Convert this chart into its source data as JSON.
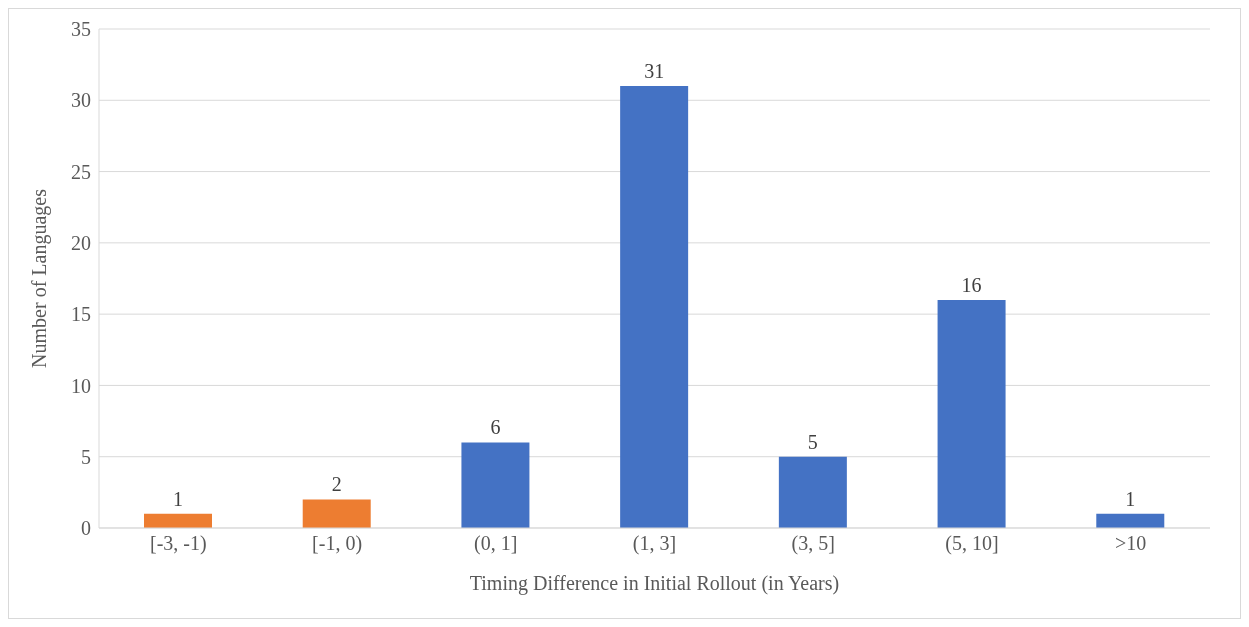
{
  "chart_data": {
    "type": "bar",
    "xlabel": "Timing Difference in Initial Rollout (in Years)",
    "ylabel": "Number of Languages",
    "categories": [
      "[-3, -1)",
      "[-1, 0)",
      "(0, 1]",
      "(1, 3]",
      "(3, 5]",
      "(5, 10]",
      ">10"
    ],
    "values": [
      1,
      2,
      6,
      31,
      5,
      16,
      1
    ],
    "colors": [
      "#ed7d31",
      "#ed7d31",
      "#4472c4",
      "#4472c4",
      "#4472c4",
      "#4472c4",
      "#4472c4"
    ],
    "ylim": [
      0,
      35
    ],
    "yticks": [
      0,
      5,
      10,
      15,
      20,
      25,
      30,
      35
    ],
    "grid": "y",
    "data_labels": true,
    "legend": false
  }
}
